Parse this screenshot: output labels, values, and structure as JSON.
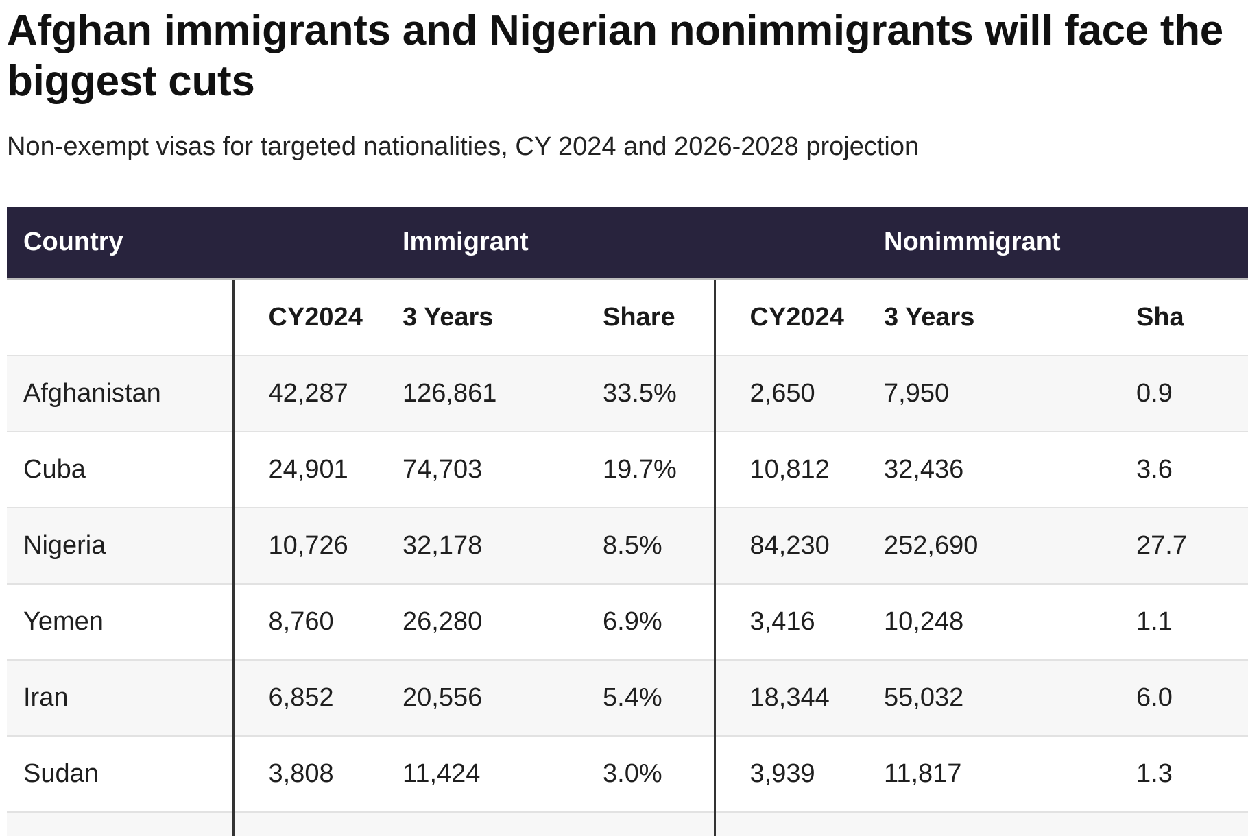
{
  "title": "Afghan immigrants and Nigerian nonimmigrants will face the biggest cuts",
  "subtitle": "Non-exempt visas for targeted nationalities, CY 2024 and 2026-2028 projection",
  "colors": {
    "header_background": "#28233d",
    "header_text": "#ffffff",
    "row_shade": "#f7f7f7",
    "divider": "#333333"
  },
  "chart_data": {
    "type": "table",
    "title": "Afghan immigrants and Nigerian nonimmigrants will face the biggest cuts",
    "subtitle": "Non-exempt visas for targeted nationalities, CY 2024 and 2026-2028 projection",
    "group_headers": [
      "Country",
      "Immigrant",
      "Nonimmigrant"
    ],
    "columns": [
      "",
      "CY2024",
      "3 Years",
      "Share",
      "CY2024",
      "3 Years",
      "Sha"
    ],
    "rows": [
      [
        "Afghanistan",
        "42,287",
        "126,861",
        "33.5%",
        "2,650",
        "7,950",
        "0.9"
      ],
      [
        "Cuba",
        "24,901",
        "74,703",
        "19.7%",
        "10,812",
        "32,436",
        "3.6"
      ],
      [
        "Nigeria",
        "10,726",
        "32,178",
        "8.5%",
        "84,230",
        "252,690",
        "27.7"
      ],
      [
        "Yemen",
        "8,760",
        "26,280",
        "6.9%",
        "3,416",
        "10,248",
        "1.1"
      ],
      [
        "Iran",
        "6,852",
        "20,556",
        "5.4%",
        "18,344",
        "55,032",
        "6.0"
      ],
      [
        "Sudan",
        "3,808",
        "11,424",
        "3.0%",
        "3,939",
        "11,817",
        "1.3"
      ]
    ]
  }
}
